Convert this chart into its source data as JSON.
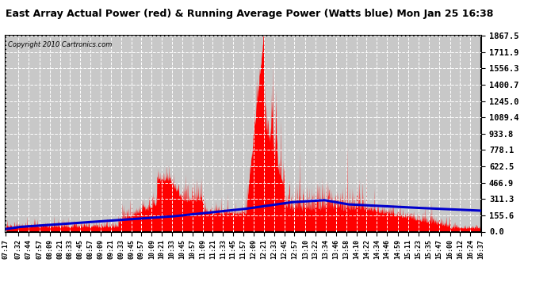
{
  "title": "East Array Actual Power (red) & Running Average Power (Watts blue) Mon Jan 25 16:38",
  "copyright": "Copyright 2010 Cartronics.com",
  "bg_color": "#ffffff",
  "plot_bg_color": "#c8c8c8",
  "grid_color": "#ffffff",
  "red_color": "#ff0000",
  "blue_color": "#0000cc",
  "ymax": 1867.5,
  "ymin": 0.0,
  "yticks": [
    0.0,
    155.6,
    311.3,
    466.9,
    622.5,
    778.1,
    933.8,
    1089.4,
    1245.0,
    1400.7,
    1556.3,
    1711.9,
    1867.5
  ],
  "ytick_labels": [
    "0.0",
    "155.6",
    "311.3",
    "466.9",
    "622.5",
    "778.1",
    "933.8",
    "1089.4",
    "1245.0",
    "1400.7",
    "1556.3",
    "1711.9",
    "1867.5"
  ],
  "xtick_labels": [
    "07:17",
    "07:32",
    "07:44",
    "07:57",
    "08:09",
    "08:21",
    "08:33",
    "08:45",
    "08:57",
    "09:09",
    "09:21",
    "09:33",
    "09:45",
    "09:57",
    "10:09",
    "10:21",
    "10:33",
    "10:45",
    "10:57",
    "11:09",
    "11:21",
    "11:33",
    "11:45",
    "11:57",
    "12:09",
    "12:21",
    "12:33",
    "12:45",
    "12:57",
    "13:10",
    "13:22",
    "13:34",
    "13:46",
    "13:58",
    "14:10",
    "14:22",
    "14:34",
    "14:46",
    "14:59",
    "15:11",
    "15:23",
    "15:35",
    "15:47",
    "16:00",
    "16:12",
    "16:24",
    "16:37"
  ]
}
